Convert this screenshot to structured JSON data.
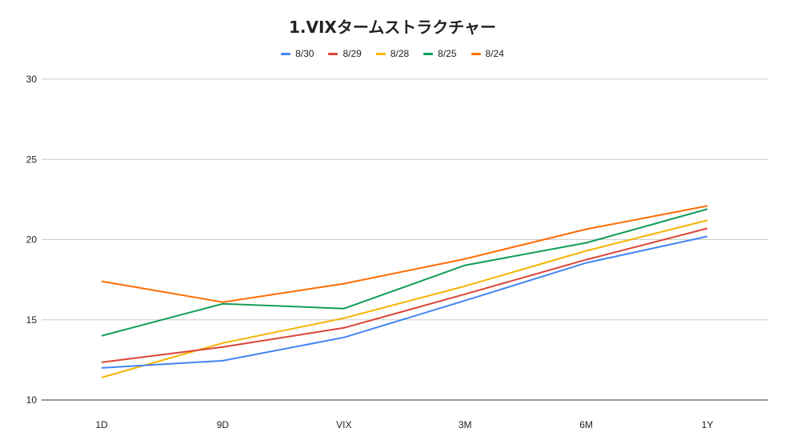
{
  "chart_data": {
    "type": "line",
    "title": "1.VIXタームストラクチャー",
    "xlabel": "",
    "ylabel": "",
    "categories": [
      "1D",
      "9D",
      "VIX",
      "3M",
      "6M",
      "1Y"
    ],
    "ylim": [
      10,
      30
    ],
    "yticks": [
      10,
      15,
      20,
      25,
      30
    ],
    "grid": true,
    "legend_position": "top",
    "series": [
      {
        "name": "8/30",
        "color": "#4285f4",
        "values": [
          12.0,
          12.45,
          13.9,
          16.2,
          18.55,
          20.2
        ]
      },
      {
        "name": "8/29",
        "color": "#db4437",
        "values": [
          12.35,
          13.3,
          14.5,
          16.6,
          18.75,
          20.7
        ]
      },
      {
        "name": "8/28",
        "color": "#f4b400",
        "values": [
          11.4,
          13.55,
          15.1,
          17.1,
          19.3,
          21.2
        ]
      },
      {
        "name": "8/25",
        "color": "#0f9d58",
        "values": [
          14.0,
          16.0,
          15.7,
          18.4,
          19.8,
          21.9
        ]
      },
      {
        "name": "8/24",
        "color": "#ff6d00",
        "values": [
          17.4,
          16.1,
          17.25,
          18.8,
          20.65,
          22.1
        ]
      }
    ]
  }
}
